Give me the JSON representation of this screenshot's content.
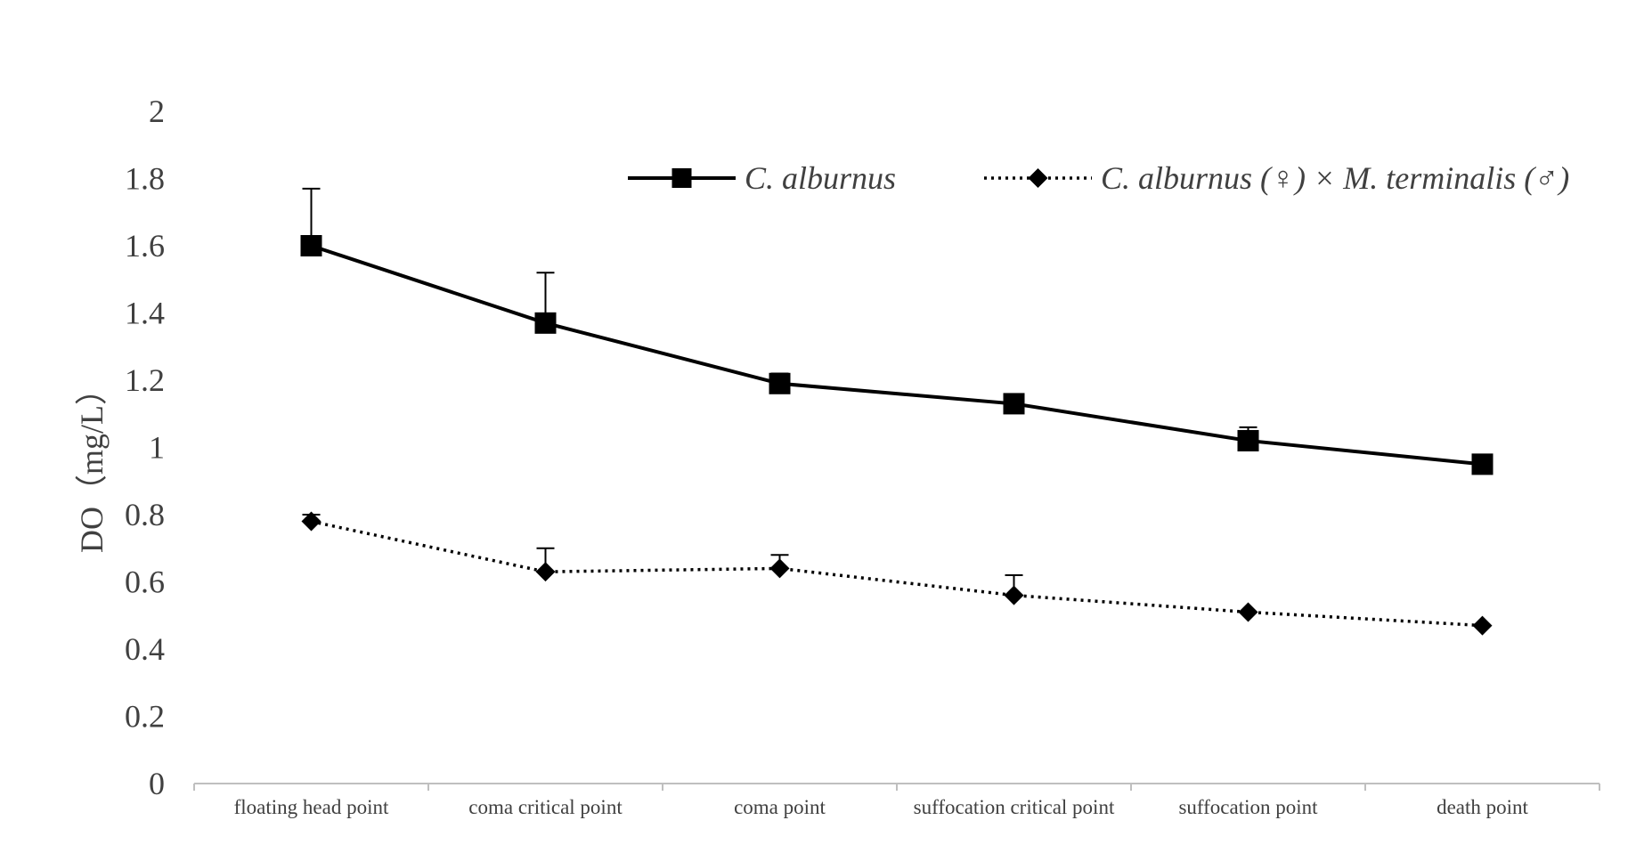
{
  "chart_data": {
    "type": "line",
    "title": "",
    "xlabel": "",
    "ylabel": "DO（mg/L）",
    "ylim": [
      0,
      2
    ],
    "yticks": [
      0,
      0.2,
      0.4,
      0.6,
      0.8,
      1,
      1.2,
      1.4,
      1.6,
      1.8,
      2
    ],
    "ytick_labels": [
      "0",
      "0.2",
      "0.4",
      "0.6",
      "0.8",
      "1",
      "1.2",
      "1.4",
      "1.6",
      "1.8",
      "2"
    ],
    "categories": [
      "floating head point",
      "coma critical point",
      "coma point",
      "suffocation critical point",
      "suffocation point",
      "death point"
    ],
    "grid": false,
    "legend_position": "top-right",
    "series": [
      {
        "name": "C. alburnus",
        "style": "solid",
        "marker": "square",
        "color": "#000000",
        "values": [
          1.6,
          1.37,
          1.19,
          1.13,
          1.02,
          0.95
        ],
        "error_upper": [
          0.17,
          0.15,
          0.03,
          0.0,
          0.04,
          0.0
        ]
      },
      {
        "name": "C. alburnus (♀) × M. terminalis (♂)",
        "style": "dotted",
        "marker": "diamond",
        "color": "#000000",
        "values": [
          0.78,
          0.63,
          0.64,
          0.56,
          0.51,
          0.47
        ],
        "error_upper": [
          0.02,
          0.07,
          0.04,
          0.06,
          0.0,
          0.0
        ]
      }
    ]
  }
}
